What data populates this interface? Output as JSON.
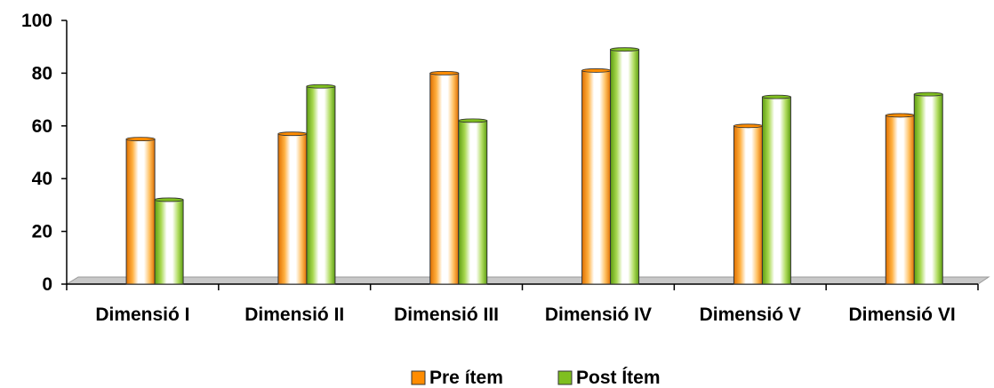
{
  "chart_data": {
    "type": "bar",
    "categories": [
      "Dimensió I",
      "Dimensió II",
      "Dimensió III",
      "Dimensió IV",
      "Dimensió V",
      "Dimensió VI"
    ],
    "series": [
      {
        "name": "Pre ítem",
        "values": [
          55,
          57,
          80,
          81,
          60,
          64
        ],
        "color": "#FF8C00"
      },
      {
        "name": "Post Ítem",
        "values": [
          32,
          75,
          62,
          89,
          71,
          72
        ],
        "color": "#7FBF1F"
      }
    ],
    "title": "",
    "xlabel": "",
    "ylabel": "",
    "ylim": [
      0,
      100
    ],
    "yticks": [
      0,
      20,
      40,
      60,
      80,
      100
    ],
    "grid": false,
    "legend": "bottom-center"
  }
}
